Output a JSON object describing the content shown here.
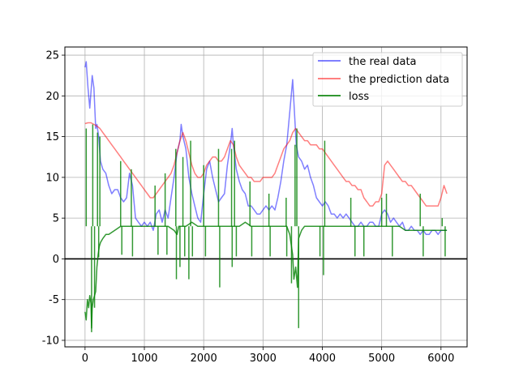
{
  "chart_data": {
    "type": "line",
    "title": "",
    "xlabel": "",
    "ylabel": "",
    "xlim": [
      -340,
      6440
    ],
    "ylim": [
      -10.8,
      26.0
    ],
    "xticks": [
      0,
      1000,
      2000,
      3000,
      4000,
      5000,
      6000
    ],
    "yticks": [
      -10,
      -5,
      0,
      5,
      10,
      15,
      20,
      25
    ],
    "grid": true,
    "legend_position": "top-right",
    "zero_line": {
      "y": 0,
      "color": "#000000"
    },
    "series": [
      {
        "name": "the real data",
        "color": "#0000ff",
        "opacity": 0.5,
        "x": [
          0,
          20,
          50,
          80,
          100,
          120,
          150,
          180,
          200,
          230,
          260,
          300,
          350,
          400,
          450,
          500,
          550,
          600,
          650,
          700,
          750,
          800,
          850,
          900,
          950,
          1000,
          1050,
          1100,
          1150,
          1200,
          1250,
          1300,
          1350,
          1400,
          1450,
          1500,
          1550,
          1600,
          1620,
          1650,
          1700,
          1750,
          1800,
          1850,
          1900,
          1950,
          2000,
          2050,
          2100,
          2150,
          2200,
          2250,
          2300,
          2350,
          2400,
          2450,
          2480,
          2500,
          2550,
          2600,
          2650,
          2700,
          2750,
          2800,
          2850,
          2900,
          2950,
          3000,
          3050,
          3100,
          3150,
          3200,
          3250,
          3300,
          3350,
          3400,
          3450,
          3500,
          3530,
          3560,
          3600,
          3650,
          3700,
          3750,
          3800,
          3850,
          3900,
          3950,
          4000,
          4050,
          4100,
          4150,
          4200,
          4250,
          4300,
          4350,
          4400,
          4450,
          4500,
          4550,
          4600,
          4650,
          4700,
          4750,
          4800,
          4850,
          4900,
          4950,
          5000,
          5050,
          5100,
          5150,
          5200,
          5250,
          5300,
          5350,
          5400,
          5450,
          5500,
          5550,
          5600,
          5650,
          5700,
          5750,
          5800,
          5850,
          5900,
          5950,
          6000,
          6050,
          6100
        ],
        "y": [
          23.5,
          24.2,
          21.0,
          18.5,
          20.5,
          22.5,
          21.0,
          16.0,
          16.5,
          15.0,
          12.0,
          11.0,
          10.5,
          9.0,
          8.0,
          8.5,
          8.5,
          7.5,
          7.0,
          7.5,
          10.5,
          9.0,
          5.0,
          4.5,
          4.0,
          4.5,
          4.0,
          4.5,
          3.5,
          5.5,
          6.0,
          4.5,
          6.0,
          5.0,
          7.5,
          10.0,
          13.0,
          14.5,
          16.5,
          15.0,
          13.5,
          10.0,
          8.0,
          6.5,
          5.0,
          4.5,
          8.0,
          11.0,
          12.0,
          10.0,
          8.5,
          7.0,
          7.5,
          8.0,
          11.5,
          14.0,
          16.0,
          14.0,
          11.0,
          9.5,
          8.5,
          8.0,
          6.5,
          6.5,
          6.0,
          5.5,
          5.5,
          6.0,
          6.5,
          6.0,
          6.5,
          6.0,
          7.5,
          9.5,
          12.0,
          14.0,
          18.0,
          22.0,
          18.0,
          14.0,
          12.5,
          12.0,
          11.0,
          11.5,
          10.0,
          9.0,
          7.5,
          7.0,
          6.5,
          7.0,
          6.5,
          5.5,
          5.5,
          5.0,
          5.5,
          5.0,
          5.5,
          5.0,
          4.5,
          4.0,
          4.0,
          4.5,
          4.0,
          4.0,
          4.5,
          4.5,
          4.0,
          4.0,
          5.5,
          6.0,
          5.5,
          4.5,
          5.0,
          4.5,
          4.0,
          4.5,
          3.5,
          3.5,
          4.0,
          3.5,
          3.5,
          3.0,
          3.5,
          3.0,
          3.0,
          3.5,
          3.5,
          3.0,
          3.5,
          3.5,
          3.5
        ]
      },
      {
        "name": "the prediction data",
        "color": "#ff0000",
        "opacity": 0.5,
        "x": [
          0,
          50,
          100,
          150,
          200,
          250,
          300,
          350,
          400,
          450,
          500,
          550,
          600,
          650,
          700,
          750,
          800,
          850,
          900,
          950,
          1000,
          1050,
          1100,
          1150,
          1200,
          1250,
          1300,
          1350,
          1400,
          1450,
          1500,
          1550,
          1600,
          1650,
          1700,
          1750,
          1800,
          1850,
          1900,
          1950,
          2000,
          2050,
          2100,
          2150,
          2200,
          2250,
          2300,
          2350,
          2400,
          2450,
          2500,
          2550,
          2600,
          2650,
          2700,
          2750,
          2800,
          2850,
          2900,
          2950,
          3000,
          3050,
          3100,
          3150,
          3200,
          3250,
          3300,
          3350,
          3400,
          3450,
          3500,
          3550,
          3600,
          3650,
          3700,
          3750,
          3800,
          3850,
          3900,
          3950,
          4000,
          4050,
          4100,
          4150,
          4200,
          4250,
          4300,
          4350,
          4400,
          4450,
          4500,
          4550,
          4600,
          4650,
          4700,
          4750,
          4800,
          4850,
          4900,
          4950,
          5000,
          5050,
          5100,
          5150,
          5200,
          5250,
          5300,
          5350,
          5400,
          5450,
          5500,
          5550,
          5600,
          5650,
          5700,
          5750,
          5800,
          5850,
          5900,
          5950,
          6000,
          6050,
          6100
        ],
        "y": [
          16.6,
          16.7,
          16.7,
          16.5,
          16.3,
          16.0,
          15.5,
          15.0,
          14.5,
          14.0,
          13.5,
          13.0,
          12.5,
          12.0,
          11.5,
          11.0,
          10.5,
          10.0,
          9.5,
          9.0,
          8.5,
          8.0,
          7.5,
          7.5,
          8.0,
          8.5,
          9.0,
          9.5,
          10.0,
          10.5,
          11.5,
          13.0,
          14.5,
          15.5,
          14.5,
          13.0,
          11.5,
          10.5,
          10.0,
          10.0,
          10.5,
          11.5,
          12.0,
          12.5,
          12.5,
          12.0,
          12.0,
          12.5,
          13.5,
          14.5,
          14.0,
          12.5,
          11.5,
          11.0,
          10.5,
          10.0,
          10.0,
          9.5,
          9.5,
          9.5,
          10.0,
          10.0,
          10.0,
          10.0,
          10.5,
          11.5,
          12.5,
          13.5,
          14.0,
          14.5,
          15.5,
          16.0,
          15.5,
          15.0,
          14.5,
          14.5,
          14.0,
          14.0,
          14.0,
          13.5,
          13.5,
          13.0,
          12.5,
          12.0,
          11.5,
          11.0,
          10.5,
          10.0,
          9.5,
          9.5,
          9.0,
          9.0,
          8.5,
          8.5,
          7.5,
          7.0,
          6.5,
          6.5,
          7.0,
          7.0,
          8.0,
          11.5,
          12.0,
          11.5,
          11.0,
          10.5,
          10.0,
          9.5,
          9.5,
          9.0,
          9.0,
          8.5,
          8.0,
          7.5,
          7.0,
          6.5,
          6.5,
          6.5,
          6.5,
          6.5,
          7.5,
          9.0,
          8.0
        ]
      },
      {
        "name": "loss",
        "color": "#008000",
        "opacity": 0.8,
        "x": [
          0,
          20,
          40,
          60,
          80,
          100,
          110,
          120,
          140,
          160,
          180,
          200,
          220,
          240,
          260,
          300,
          350,
          400,
          500,
          600,
          700,
          800,
          900,
          1000,
          1100,
          1200,
          1300,
          1400,
          1500,
          1550,
          1580,
          1600,
          1650,
          1700,
          1800,
          1900,
          2000,
          2100,
          2200,
          2300,
          2400,
          2500,
          2600,
          2700,
          2800,
          2900,
          3000,
          3100,
          3200,
          3300,
          3400,
          3450,
          3500,
          3520,
          3550,
          3580,
          3600,
          3650,
          3700,
          3800,
          3900,
          4000,
          4100,
          4200,
          4300,
          4400,
          4500,
          4600,
          4700,
          4800,
          4900,
          5000,
          5100,
          5200,
          5300,
          5400,
          5500,
          5600,
          5700,
          5800,
          5900,
          6000,
          6050,
          6100
        ],
        "y": [
          -6.5,
          -7.5,
          -5.0,
          -6.0,
          -4.5,
          -5.5,
          -8.5,
          -6.0,
          -5.0,
          -4.5,
          -4.0,
          -1.0,
          0.5,
          1.5,
          2.0,
          2.5,
          3.0,
          3.0,
          3.5,
          4.0,
          4.0,
          4.0,
          4.0,
          4.0,
          4.0,
          4.0,
          4.0,
          4.0,
          3.5,
          3.0,
          4.0,
          4.0,
          4.0,
          4.0,
          4.5,
          4.0,
          4.0,
          4.0,
          4.0,
          4.0,
          4.0,
          4.0,
          4.0,
          4.5,
          4.0,
          4.0,
          4.0,
          4.0,
          4.0,
          4.0,
          4.0,
          3.0,
          0.5,
          -2.5,
          -1.0,
          -3.5,
          2.5,
          3.5,
          4.0,
          4.0,
          4.0,
          4.0,
          4.0,
          4.0,
          4.0,
          4.0,
          4.0,
          4.0,
          4.0,
          4.0,
          4.0,
          4.0,
          4.0,
          4.0,
          4.0,
          3.5,
          3.5,
          3.5,
          3.5,
          3.5,
          3.5,
          3.5,
          3.5,
          3.5
        ]
      }
    ],
    "loss_spikes": [
      {
        "x": 20,
        "y": 16.0
      },
      {
        "x": 110,
        "y": -9.0
      },
      {
        "x": 130,
        "y": 16.5
      },
      {
        "x": 160,
        "y": -6.0
      },
      {
        "x": 210,
        "y": 15.5
      },
      {
        "x": 230,
        "y": 0.2
      },
      {
        "x": 250,
        "y": 15.0
      },
      {
        "x": 600,
        "y": 12.0
      },
      {
        "x": 620,
        "y": 0.5
      },
      {
        "x": 780,
        "y": 11.0
      },
      {
        "x": 800,
        "y": 0.3
      },
      {
        "x": 1180,
        "y": 9.0
      },
      {
        "x": 1230,
        "y": 0.5
      },
      {
        "x": 1350,
        "y": 10.5
      },
      {
        "x": 1380,
        "y": 0.5
      },
      {
        "x": 1530,
        "y": 13.5
      },
      {
        "x": 1540,
        "y": -2.5
      },
      {
        "x": 1600,
        "y": -1.0
      },
      {
        "x": 1650,
        "y": 12.5
      },
      {
        "x": 1680,
        "y": 0.3
      },
      {
        "x": 1750,
        "y": -2.5
      },
      {
        "x": 1780,
        "y": 14.5
      },
      {
        "x": 1810,
        "y": 0.3
      },
      {
        "x": 2000,
        "y": 11.5
      },
      {
        "x": 2030,
        "y": 0.3
      },
      {
        "x": 2250,
        "y": 13.5
      },
      {
        "x": 2270,
        "y": -3.5
      },
      {
        "x": 2470,
        "y": 13.5
      },
      {
        "x": 2480,
        "y": -1.0
      },
      {
        "x": 2520,
        "y": 14.5
      },
      {
        "x": 2550,
        "y": 0.3
      },
      {
        "x": 2780,
        "y": 9.5
      },
      {
        "x": 2810,
        "y": 0.3
      },
      {
        "x": 3100,
        "y": 8.0
      },
      {
        "x": 3120,
        "y": 0.3
      },
      {
        "x": 3390,
        "y": 7.5
      },
      {
        "x": 3400,
        "y": 0.3
      },
      {
        "x": 3480,
        "y": -3.0
      },
      {
        "x": 3540,
        "y": 14.0
      },
      {
        "x": 3570,
        "y": 16.0
      },
      {
        "x": 3600,
        "y": -8.5
      },
      {
        "x": 3960,
        "y": 0.3
      },
      {
        "x": 4020,
        "y": -2.0
      },
      {
        "x": 4040,
        "y": 14.5
      },
      {
        "x": 4480,
        "y": 7.5
      },
      {
        "x": 4550,
        "y": 0.3
      },
      {
        "x": 4700,
        "y": 0.3
      },
      {
        "x": 5000,
        "y": 7.5
      },
      {
        "x": 5080,
        "y": 8.0
      },
      {
        "x": 5180,
        "y": 0.3
      },
      {
        "x": 5650,
        "y": 8.0
      },
      {
        "x": 5700,
        "y": 0.3
      },
      {
        "x": 6020,
        "y": 5.0
      },
      {
        "x": 6070,
        "y": 0.3
      }
    ]
  }
}
